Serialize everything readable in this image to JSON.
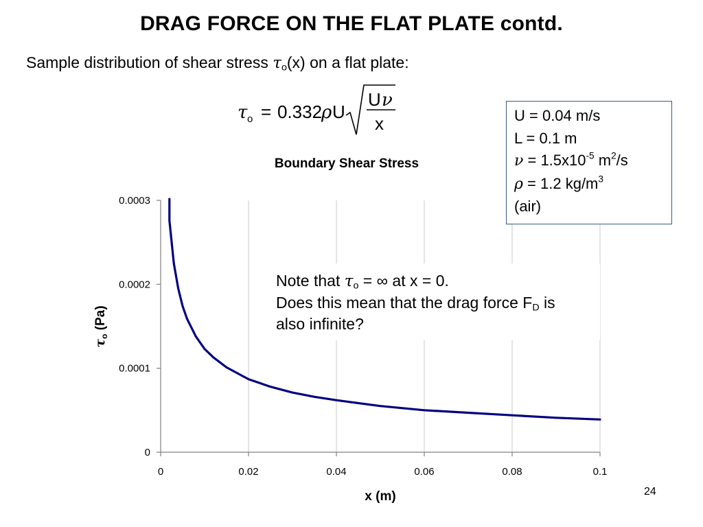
{
  "slide": {
    "title": "DRAG FORCE ON THE FLAT PLATE contd.",
    "subtitle_prefix": "Sample distribution of shear stress ",
    "subtitle_tau": "τ",
    "subtitle_sub": "o",
    "subtitle_suffix": "(x) on a flat plate:",
    "page_number": "24"
  },
  "formula": {
    "lhs_symbol": "τ",
    "lhs_sub": "o",
    "equals": "=",
    "coefficient": "0.332",
    "rho": "ρ",
    "velocity": "U",
    "numerator_u": "U",
    "numerator_nu": "ν",
    "denominator": "x"
  },
  "parameters": {
    "u_line": "U = 0.04 m/s",
    "l_line": "L = 0.1 m",
    "nu_symbol": "ν",
    "nu_text": " = 1.5x10",
    "nu_exp": "-5",
    "nu_unit": " m",
    "nu_unit_exp": "2",
    "nu_unit_tail": "/s",
    "rho_symbol": "ρ",
    "rho_text": " = 1.2 kg/m",
    "rho_exp": "3",
    "medium": "(air)"
  },
  "note": {
    "prefix": "Note that ",
    "tau": "τ",
    "sub": "o",
    "mid": " = ",
    "infinity": "∞",
    "suffix": " at x = 0.",
    "line2_prefix": "Does this mean that the drag force F",
    "line2_sub": "D",
    "line2_suffix": " is",
    "line3": "also infinite?"
  },
  "chart_data": {
    "type": "line",
    "title": "Boundary Shear Stress",
    "xlabel": "x (m)",
    "ylabel_symbol": "τ",
    "ylabel_sub": "o",
    "ylabel_unit": " (Pa)",
    "xlim": [
      0,
      0.1
    ],
    "ylim": [
      0,
      0.0003
    ],
    "x_ticks": [
      0,
      0.02,
      0.04,
      0.06,
      0.08,
      0.1
    ],
    "x_tick_labels": [
      "0",
      "0.02",
      "0.04",
      "0.06",
      "0.08",
      "0.1"
    ],
    "y_ticks": [
      0,
      0.0001,
      0.0002,
      0.0003
    ],
    "y_tick_labels": [
      "0",
      "0.0001",
      "0.0002",
      "0.0003"
    ],
    "grid": "vertical",
    "line_color": "#000080",
    "series": [
      {
        "x": [
          0.002,
          0.003,
          0.004,
          0.005,
          0.006,
          0.008,
          0.01,
          0.012,
          0.015,
          0.02,
          0.025,
          0.03,
          0.035,
          0.04,
          0.05,
          0.06,
          0.07,
          0.08,
          0.09,
          0.1
        ],
        "values": [
          0.000276,
          0.000225,
          0.000195,
          0.000174,
          0.000159,
          0.000138,
          0.000123,
          0.000113,
          0.000101,
          8.7e-05,
          7.8e-05,
          7.1e-05,
          6.6e-05,
          6.2e-05,
          5.5e-05,
          5e-05,
          4.7e-05,
          4.4e-05,
          4.1e-05,
          3.9e-05
        ]
      }
    ]
  }
}
